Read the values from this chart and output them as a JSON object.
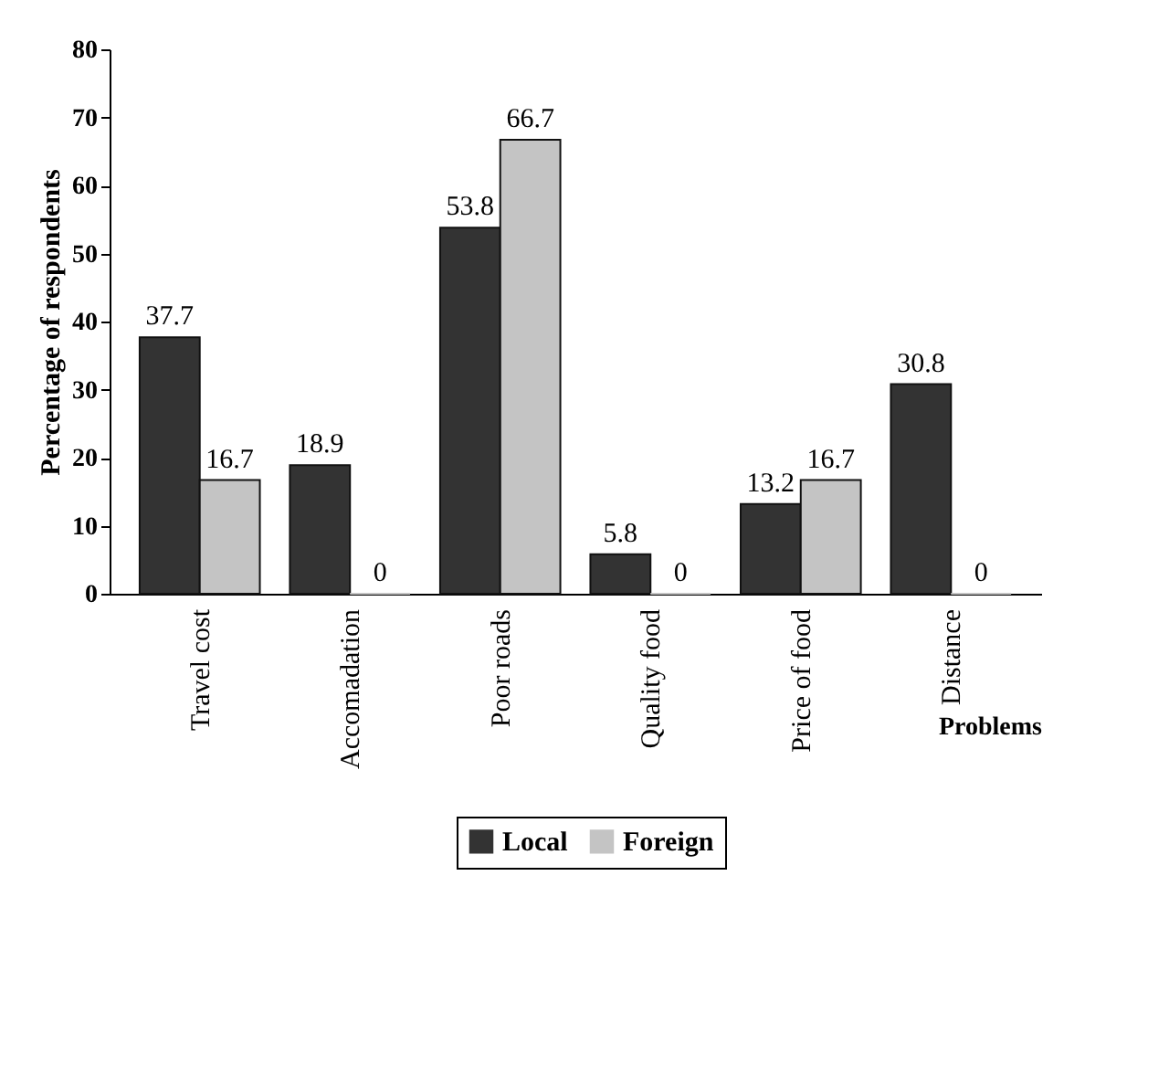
{
  "chart_data": {
    "type": "bar",
    "xlabel": "Problems",
    "ylabel": "Percentage of respondents",
    "categories": [
      "Travel cost",
      "Accomadation",
      "Poor roads",
      "Quality food",
      "Price of food",
      "Distance"
    ],
    "series": [
      {
        "name": "Local",
        "color": "#333333",
        "values": [
          37.7,
          18.9,
          53.8,
          5.8,
          13.2,
          30.8
        ]
      },
      {
        "name": "Foreign",
        "color": "#c4c4c4",
        "values": [
          16.7,
          0,
          66.7,
          0,
          16.7,
          0
        ]
      }
    ],
    "ylim": [
      0,
      80
    ],
    "yticks": [
      0,
      10,
      20,
      30,
      40,
      50,
      60,
      70,
      80
    ],
    "data_labels": true,
    "legend": "bottom"
  }
}
